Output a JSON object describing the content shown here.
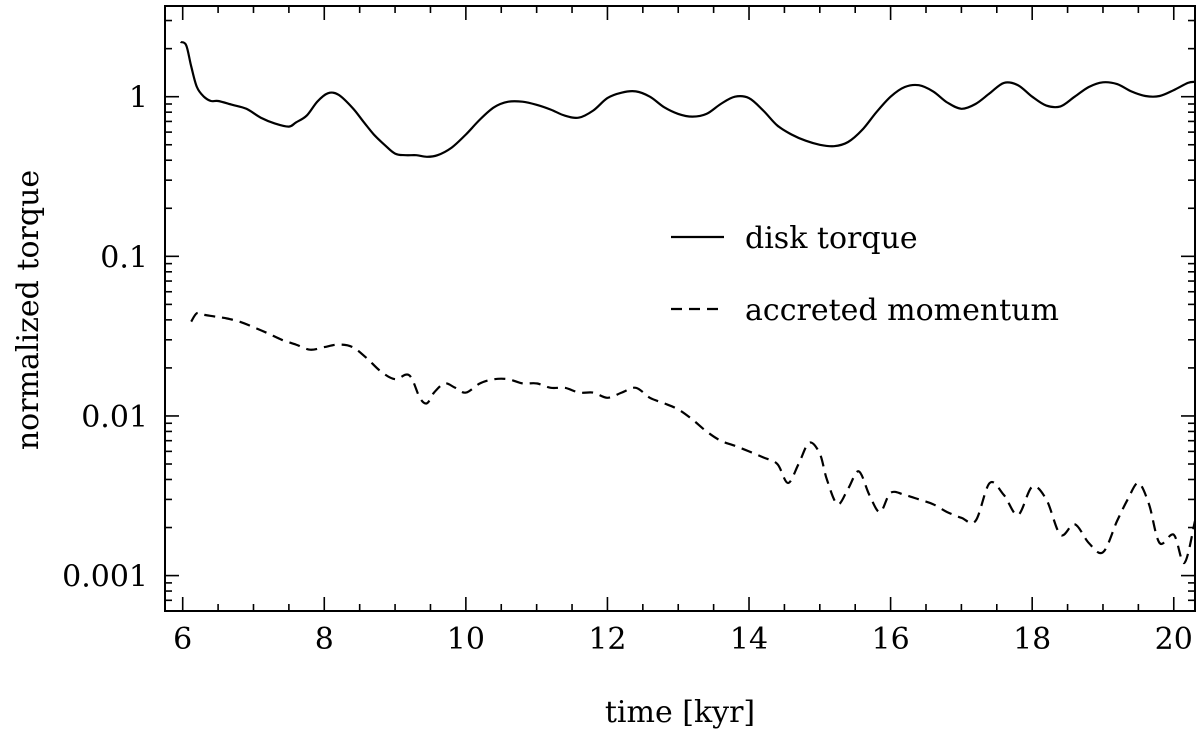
{
  "chart_data": {
    "type": "line",
    "xlabel": "time [kyr]",
    "ylabel": "normalized torque",
    "xlim": [
      5.75,
      20.3
    ],
    "ylim": [
      0.0006,
      3.7
    ],
    "yscale": "log",
    "legend_position": "center-right",
    "x_ticks": [
      {
        "value": 6,
        "label": "6"
      },
      {
        "value": 8,
        "label": "8"
      },
      {
        "value": 10,
        "label": "10"
      },
      {
        "value": 12,
        "label": "12"
      },
      {
        "value": 14,
        "label": "14"
      },
      {
        "value": 16,
        "label": "16"
      },
      {
        "value": 18,
        "label": "18"
      },
      {
        "value": 20,
        "label": "20"
      }
    ],
    "y_ticks": [
      {
        "value": 1,
        "label": "1"
      },
      {
        "value": 0.1,
        "label": "0.1"
      },
      {
        "value": 0.01,
        "label": "0.01"
      },
      {
        "value": 0.001,
        "label": "0.001"
      }
    ],
    "series": [
      {
        "name": "disk torque",
        "style": "solid",
        "x": [
          5.97,
          6.05,
          6.12,
          6.2,
          6.3,
          6.4,
          6.5,
          6.7,
          6.9,
          7.1,
          7.3,
          7.5,
          7.6,
          7.75,
          7.9,
          8.05,
          8.2,
          8.4,
          8.55,
          8.7,
          8.85,
          9.0,
          9.15,
          9.3,
          9.45,
          9.6,
          9.8,
          10.0,
          10.2,
          10.4,
          10.6,
          10.8,
          11.0,
          11.2,
          11.4,
          11.6,
          11.8,
          12.0,
          12.2,
          12.4,
          12.6,
          12.8,
          13.0,
          13.2,
          13.4,
          13.6,
          13.8,
          14.0,
          14.2,
          14.4,
          14.6,
          14.8,
          15.0,
          15.2,
          15.4,
          15.6,
          15.8,
          16.0,
          16.2,
          16.4,
          16.6,
          16.8,
          17.0,
          17.2,
          17.4,
          17.6,
          17.8,
          18.0,
          18.2,
          18.4,
          18.6,
          18.8,
          19.0,
          19.2,
          19.4,
          19.6,
          19.8,
          20.0,
          20.2,
          20.3
        ],
        "values": [
          2.2,
          2.1,
          1.55,
          1.15,
          1.0,
          0.94,
          0.94,
          0.89,
          0.84,
          0.74,
          0.68,
          0.65,
          0.69,
          0.76,
          0.93,
          1.05,
          1.03,
          0.85,
          0.7,
          0.58,
          0.5,
          0.44,
          0.43,
          0.43,
          0.42,
          0.43,
          0.48,
          0.58,
          0.72,
          0.86,
          0.93,
          0.93,
          0.89,
          0.83,
          0.76,
          0.74,
          0.82,
          0.98,
          1.06,
          1.08,
          1.0,
          0.86,
          0.78,
          0.75,
          0.78,
          0.9,
          1.0,
          0.98,
          0.82,
          0.66,
          0.58,
          0.53,
          0.5,
          0.49,
          0.52,
          0.62,
          0.8,
          1.0,
          1.15,
          1.18,
          1.08,
          0.92,
          0.84,
          0.9,
          1.05,
          1.22,
          1.18,
          1.0,
          0.88,
          0.87,
          1.0,
          1.15,
          1.23,
          1.2,
          1.08,
          1.01,
          1.01,
          1.1,
          1.22,
          1.24
        ]
      },
      {
        "name": "accreted momentum",
        "style": "dashed",
        "x": [
          6.12,
          6.2,
          6.3,
          6.45,
          6.6,
          6.8,
          7.0,
          7.2,
          7.4,
          7.6,
          7.8,
          8.0,
          8.2,
          8.4,
          8.6,
          8.8,
          9.0,
          9.2,
          9.35,
          9.45,
          9.55,
          9.7,
          9.85,
          10.0,
          10.2,
          10.4,
          10.6,
          10.8,
          11.0,
          11.2,
          11.4,
          11.6,
          11.8,
          12.0,
          12.2,
          12.4,
          12.6,
          12.8,
          13.0,
          13.2,
          13.4,
          13.6,
          13.8,
          14.0,
          14.2,
          14.4,
          14.55,
          14.7,
          14.85,
          15.0,
          15.1,
          15.25,
          15.4,
          15.55,
          15.7,
          15.85,
          16.0,
          16.2,
          16.4,
          16.6,
          16.8,
          17.0,
          17.2,
          17.4,
          17.6,
          17.8,
          18.0,
          18.2,
          18.4,
          18.6,
          18.8,
          19.0,
          19.2,
          19.35,
          19.5,
          19.65,
          19.8,
          20.0,
          20.15,
          20.3
        ],
        "values": [
          0.039,
          0.044,
          0.043,
          0.042,
          0.041,
          0.039,
          0.036,
          0.033,
          0.03,
          0.028,
          0.026,
          0.027,
          0.028,
          0.027,
          0.023,
          0.019,
          0.017,
          0.018,
          0.013,
          0.012,
          0.014,
          0.016,
          0.015,
          0.014,
          0.016,
          0.017,
          0.017,
          0.016,
          0.016,
          0.015,
          0.015,
          0.014,
          0.014,
          0.013,
          0.014,
          0.015,
          0.013,
          0.012,
          0.011,
          0.0095,
          0.008,
          0.007,
          0.0065,
          0.006,
          0.0055,
          0.005,
          0.0038,
          0.005,
          0.0068,
          0.0058,
          0.004,
          0.0028,
          0.0035,
          0.0045,
          0.0032,
          0.0025,
          0.0033,
          0.0032,
          0.003,
          0.0028,
          0.0025,
          0.0023,
          0.0022,
          0.0038,
          0.0032,
          0.0024,
          0.0036,
          0.003,
          0.0018,
          0.0021,
          0.0016,
          0.0014,
          0.0022,
          0.003,
          0.0038,
          0.0028,
          0.0016,
          0.0018,
          0.0012,
          0.0022
        ]
      }
    ]
  }
}
